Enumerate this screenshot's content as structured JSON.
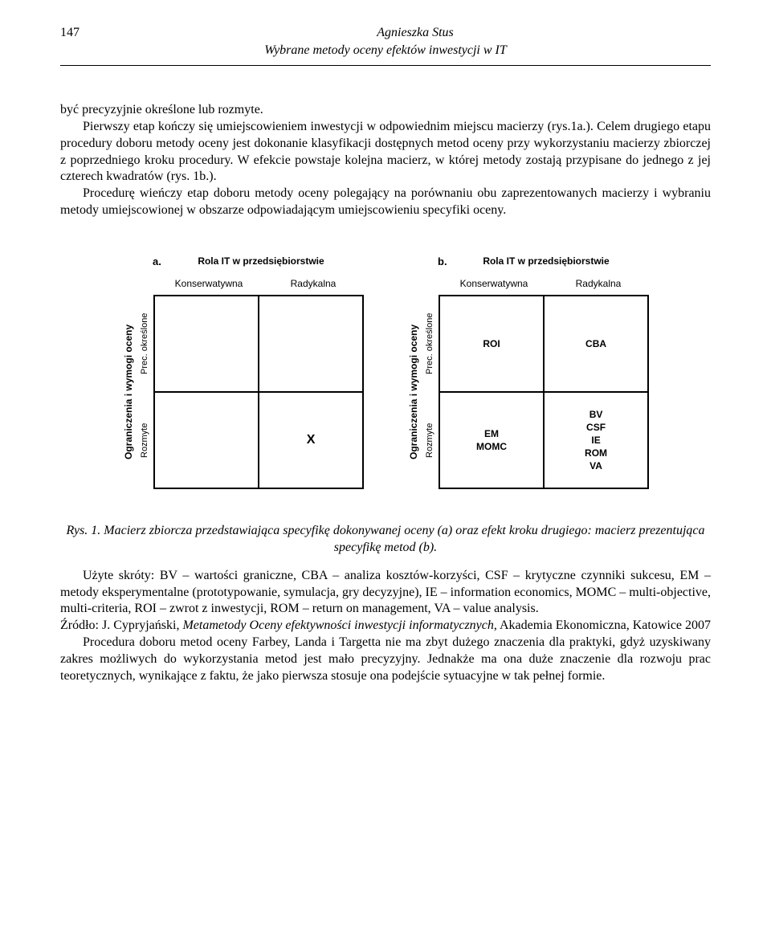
{
  "page_number": "147",
  "header_author": "Agnieszka Stus",
  "header_title": "Wybrane metody oceny efektów inwestycji w IT",
  "para1": "być precyzyjnie określone lub rozmyte.",
  "para2": "Pierwszy etap kończy się umiejscowieniem inwestycji w odpowiednim miejscu macierzy (rys.1a.). Celem drugiego etapu procedury doboru metody oceny jest dokonanie klasyfikacji dostępnych metod oceny przy wykorzystaniu macierzy zbiorczej z poprzedniego kroku procedury. W efekcie powstaje kolejna macierz, w której metody zostają przypisane do jednego z jej czterech kwadratów (rys. 1b.).",
  "para3": "Procedurę wieńczy etap doboru metody oceny polegający na porównaniu obu zaprezentowanych macierzy i wybraniu metody umiejscowionej w obszarze odpowiadającym umiejscowieniu specyfiki oceny.",
  "figure": {
    "panel_a": {
      "label": "a.",
      "top_title": "Rola IT w przedsiębiorstwie",
      "col1": "Konserwatywna",
      "col2": "Radykalna",
      "yaxis_main": "Ograniczenia i wymogi oceny",
      "yaxis_sub1": "Prec. określone",
      "yaxis_sub2": "Rozmyte",
      "cells": {
        "r1c1": "",
        "r1c2": "",
        "r2c1": "",
        "r2c2": "X"
      }
    },
    "panel_b": {
      "label": "b.",
      "top_title": "Rola IT w przedsiębiorstwie",
      "col1": "Konserwatywna",
      "col2": "Radykalna",
      "yaxis_main": "Ograniczenia i wymogi oceny",
      "yaxis_sub1": "Prec. określone",
      "yaxis_sub2": "Rozmyte",
      "cells": {
        "r1c1": "ROI",
        "r1c2": "CBA",
        "r2c1": "EM\nMOMC",
        "r2c2": "BV\nCSF\nIE\nROM\nVA"
      }
    }
  },
  "caption": "Rys. 1. Macierz zbiorcza przedstawiająca specyfikę dokonywanej oceny (a) oraz efekt kroku drugiego: macierz prezentująca specyfikę metod (b).",
  "legend": "Użyte skróty: BV – wartości graniczne, CBA – analiza kosztów-korzyści, CSF – krytyczne czynniki sukcesu, EM – metody eksperymentalne (prototypowanie, symulacja, gry decyzyjne), IE – information economics, MOMC – multi-objective, multi-criteria, ROI – zwrot z inwestycji, ROM – return on management, VA – value analysis.",
  "source_label": "Źródło: ",
  "source_text": "J. Cypryjański, Metametody Oceny efektywności inwestycji informatycznych, Akademia Ekonomiczna, Katowice 2007",
  "source_italic": "Metametody Oceny efektywności inwestycji informatycznych",
  "source_pre": "J. Cypryjański, ",
  "source_post": ", Akademia Ekonomiczna, Katowice 2007",
  "para4": "Procedura doboru metod oceny Farbey, Landa i Targetta nie ma zbyt dużego znaczenia dla praktyki, gdyż uzyskiwany zakres możliwych do wykorzystania metod jest mało precyzyjny. Jednakże ma ona duże znaczenie dla rozwoju prac teoretycznych, wynikające z faktu, że jako pierwsza stosuje ona podejście sytuacyjne w tak pełnej formie."
}
